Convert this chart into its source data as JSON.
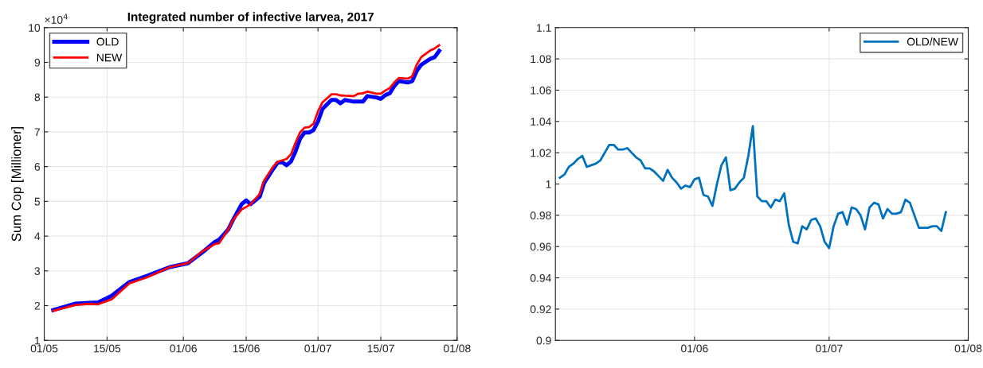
{
  "chart_data": [
    {
      "type": "line",
      "title": "Integrated number of infective larvea, 2017",
      "ylabel": "Sum Cop [Millioner]",
      "annotations": [
        "×10$^{4}$"
      ],
      "grid": true,
      "legend": "top left",
      "line_style": "solid",
      "marker": "none",
      "x": [
        "2017-05-03",
        "2017-05-08",
        "2017-05-11",
        "2017-05-13",
        "2017-05-16",
        "2017-05-20",
        "2017-05-24",
        "2017-05-29",
        "2017-06-02",
        "2017-06-05",
        "2017-06-08",
        "2017-06-09",
        "2017-06-11",
        "2017-06-12",
        "2017-06-14",
        "2017-06-15",
        "2017-06-16",
        "2017-06-18",
        "2017-06-19",
        "2017-06-21",
        "2017-06-22",
        "2017-06-23",
        "2017-06-24",
        "2017-06-25",
        "2017-06-26",
        "2017-06-27",
        "2017-06-28",
        "2017-06-29",
        "2017-06-30",
        "2017-07-01",
        "2017-07-02",
        "2017-07-04",
        "2017-07-05",
        "2017-07-06",
        "2017-07-07",
        "2017-07-09",
        "2017-07-10",
        "2017-07-11",
        "2017-07-12",
        "2017-07-14",
        "2017-07-15",
        "2017-07-16",
        "2017-07-17",
        "2017-07-18",
        "2017-07-19",
        "2017-07-21",
        "2017-07-22",
        "2017-07-23",
        "2017-07-24",
        "2017-07-26",
        "2017-07-27",
        "2017-07-28"
      ],
      "series": [
        {
          "name": "OLD",
          "color": "#0000ff",
          "values": [
            1.87,
            2.06,
            2.08,
            2.09,
            2.28,
            2.68,
            2.86,
            3.11,
            3.22,
            3.51,
            3.83,
            3.9,
            4.19,
            4.45,
            4.92,
            5.03,
            4.92,
            5.13,
            5.53,
            5.93,
            6.11,
            6.13,
            6.04,
            6.15,
            6.44,
            6.8,
            6.98,
            6.98,
            7.05,
            7.3,
            7.66,
            7.92,
            7.92,
            7.82,
            7.92,
            7.87,
            7.87,
            7.87,
            8.03,
            7.99,
            7.95,
            8.06,
            8.11,
            8.32,
            8.46,
            8.42,
            8.46,
            8.75,
            8.93,
            9.1,
            9.15,
            9.33
          ]
        },
        {
          "name": "NEW",
          "color": "#ff0000",
          "values": [
            1.85,
            2.02,
            2.05,
            2.04,
            2.18,
            2.64,
            2.82,
            3.11,
            3.22,
            3.54,
            3.77,
            3.8,
            4.19,
            4.45,
            4.77,
            4.84,
            4.92,
            5.21,
            5.6,
            6.0,
            6.14,
            6.18,
            6.22,
            6.36,
            6.69,
            6.98,
            7.12,
            7.14,
            7.23,
            7.59,
            7.85,
            8.08,
            8.08,
            8.05,
            8.04,
            8.03,
            8.1,
            8.11,
            8.16,
            8.1,
            8.1,
            8.19,
            8.26,
            8.42,
            8.55,
            8.53,
            8.6,
            8.93,
            9.15,
            9.34,
            9.4,
            9.49
          ]
        }
      ],
      "xlim": [
        "2017-05-01",
        "2017-08-01"
      ],
      "xticks": [
        {
          "value": "2017-05-01",
          "label": "01/05"
        },
        {
          "value": "2017-05-15",
          "label": "15/05"
        },
        {
          "value": "2017-06-01",
          "label": "01/06"
        },
        {
          "value": "2017-06-15",
          "label": "15/06"
        },
        {
          "value": "2017-07-01",
          "label": "01/07"
        },
        {
          "value": "2017-07-15",
          "label": "15/07"
        },
        {
          "value": "2017-08-01",
          "label": "01/08"
        }
      ],
      "ylim": [
        1,
        10
      ],
      "yticks": [
        1,
        2,
        3,
        4,
        5,
        6,
        7,
        8,
        9,
        10
      ]
    },
    {
      "type": "line",
      "grid": true,
      "legend": "top right",
      "line_style": "solid",
      "marker": "none",
      "x": [
        "2017-05-02",
        "2017-05-03",
        "2017-05-04",
        "2017-05-05",
        "2017-05-06",
        "2017-05-07",
        "2017-05-08",
        "2017-05-10",
        "2017-05-11",
        "2017-05-12",
        "2017-05-13",
        "2017-05-14",
        "2017-05-15",
        "2017-05-16",
        "2017-05-17",
        "2017-05-18",
        "2017-05-19",
        "2017-05-20",
        "2017-05-21",
        "2017-05-22",
        "2017-05-23",
        "2017-05-24",
        "2017-05-25",
        "2017-05-26",
        "2017-05-27",
        "2017-05-28",
        "2017-05-29",
        "2017-05-30",
        "2017-05-31",
        "2017-06-01",
        "2017-06-02",
        "2017-06-03",
        "2017-06-04",
        "2017-06-05",
        "2017-06-06",
        "2017-06-07",
        "2017-06-08",
        "2017-06-09",
        "2017-06-10",
        "2017-06-11",
        "2017-06-12",
        "2017-06-13",
        "2017-06-14",
        "2017-06-15",
        "2017-06-16",
        "2017-06-17",
        "2017-06-18",
        "2017-06-19",
        "2017-06-20",
        "2017-06-21",
        "2017-06-22",
        "2017-06-23",
        "2017-06-24",
        "2017-06-25",
        "2017-06-26",
        "2017-06-27",
        "2017-06-28",
        "2017-06-29",
        "2017-06-30",
        "2017-07-01",
        "2017-07-02",
        "2017-07-03",
        "2017-07-04",
        "2017-07-05",
        "2017-07-06",
        "2017-07-07",
        "2017-07-08",
        "2017-07-09",
        "2017-07-10",
        "2017-07-11",
        "2017-07-12",
        "2017-07-13",
        "2017-07-14",
        "2017-07-15",
        "2017-07-16",
        "2017-07-17",
        "2017-07-18",
        "2017-07-19",
        "2017-07-20",
        "2017-07-21",
        "2017-07-22",
        "2017-07-23",
        "2017-07-24",
        "2017-07-25",
        "2017-07-26",
        "2017-07-27"
      ],
      "series": [
        {
          "name": "OLD/NEW",
          "color": "#0072bd",
          "values": [
            1.004,
            1.006,
            1.011,
            1.013,
            1.016,
            1.018,
            1.011,
            1.013,
            1.015,
            1.02,
            1.025,
            1.025,
            1.022,
            1.022,
            1.023,
            1.02,
            1.017,
            1.015,
            1.01,
            1.01,
            1.008,
            1.005,
            1.002,
            1.009,
            1.004,
            1.001,
            0.997,
            0.999,
            0.998,
            1.003,
            1.004,
            0.993,
            0.992,
            0.986,
            1.0,
            1.012,
            1.017,
            0.996,
            0.997,
            1.001,
            1.004,
            1.018,
            1.037,
            0.992,
            0.989,
            0.989,
            0.985,
            0.99,
            0.989,
            0.994,
            0.974,
            0.963,
            0.962,
            0.973,
            0.971,
            0.977,
            0.978,
            0.973,
            0.963,
            0.959,
            0.973,
            0.981,
            0.982,
            0.974,
            0.985,
            0.984,
            0.98,
            0.971,
            0.985,
            0.988,
            0.987,
            0.978,
            0.984,
            0.981,
            0.981,
            0.982,
            0.99,
            0.988,
            0.98,
            0.972,
            0.972,
            0.972,
            0.973,
            0.973,
            0.97,
            0.982
          ]
        }
      ],
      "xlim": [
        "2017-05-01",
        "2017-08-01"
      ],
      "xticks": [
        {
          "value": "2017-06-01",
          "label": "01/06"
        },
        {
          "value": "2017-07-01",
          "label": "01/07"
        },
        {
          "value": "2017-08-01",
          "label": "01/08"
        }
      ],
      "ylim": [
        0.9,
        1.1
      ],
      "yticks": [
        0.9,
        0.92,
        0.94,
        0.96,
        0.98,
        1,
        1.02,
        1.04,
        1.06,
        1.08,
        1.1
      ]
    }
  ]
}
